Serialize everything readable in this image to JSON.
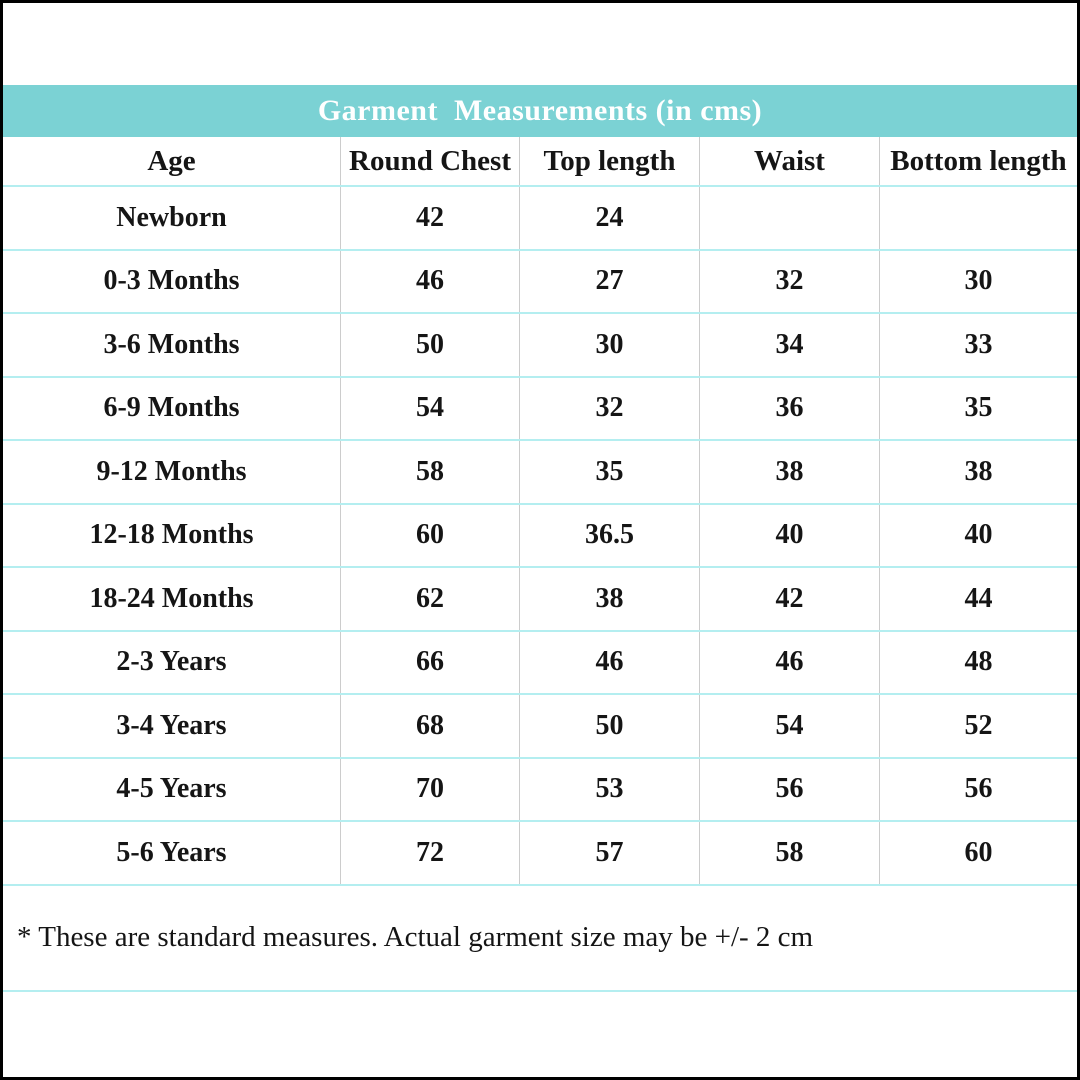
{
  "title": "Garment  Measurements (in cms)",
  "columns": [
    "Age",
    "Round Chest",
    "Top length",
    "Waist",
    "Bottom length"
  ],
  "rows": [
    {
      "label": "Newborn",
      "values": [
        "42",
        "24",
        "",
        ""
      ]
    },
    {
      "label": "0-3 Months",
      "values": [
        "46",
        "27",
        "32",
        "30"
      ]
    },
    {
      "label": "3-6 Months",
      "values": [
        "50",
        "30",
        "34",
        "33"
      ]
    },
    {
      "label": "6-9 Months",
      "values": [
        "54",
        "32",
        "36",
        "35"
      ]
    },
    {
      "label": "9-12 Months",
      "values": [
        "58",
        "35",
        "38",
        "38"
      ]
    },
    {
      "label": "12-18 Months",
      "values": [
        "60",
        "36.5",
        "40",
        "40"
      ]
    },
    {
      "label": "18-24 Months",
      "values": [
        "62",
        "38",
        "42",
        "44"
      ]
    },
    {
      "label": "2-3 Years",
      "values": [
        "66",
        "46",
        "46",
        "48"
      ]
    },
    {
      "label": "3-4 Years",
      "values": [
        "68",
        "50",
        "54",
        "52"
      ]
    },
    {
      "label": "4-5 Years",
      "values": [
        "70",
        "53",
        "56",
        "56"
      ]
    },
    {
      "label": "5-6 Years",
      "values": [
        "72",
        "57",
        "58",
        "60"
      ]
    }
  ],
  "footnote": "* These are standard measures. Actual garment size may be +/- 2 cm",
  "colors": {
    "title_band_bg": "#7bd2d4",
    "title_text": "#ffffff",
    "row_separator": "#b4eef0",
    "column_separator": "#cccccc",
    "outer_border": "#000000",
    "body_text": "#151515"
  },
  "chart_data": {
    "type": "table",
    "title": "Garment  Measurements (in cms)",
    "columns": [
      "Age",
      "Round Chest",
      "Top length",
      "Waist",
      "Bottom length"
    ],
    "units": "cm",
    "rows": [
      [
        "Newborn",
        42,
        24,
        null,
        null
      ],
      [
        "0-3 Months",
        46,
        27,
        32,
        30
      ],
      [
        "3-6 Months",
        50,
        30,
        34,
        33
      ],
      [
        "6-9 Months",
        54,
        32,
        36,
        35
      ],
      [
        "9-12 Months",
        58,
        35,
        38,
        38
      ],
      [
        "12-18 Months",
        60,
        36.5,
        40,
        40
      ],
      [
        "18-24 Months",
        62,
        38,
        42,
        44
      ],
      [
        "2-3 Years",
        66,
        46,
        46,
        48
      ],
      [
        "3-4 Years",
        68,
        50,
        54,
        52
      ],
      [
        "4-5 Years",
        70,
        53,
        56,
        56
      ],
      [
        "5-6 Years",
        72,
        57,
        58,
        60
      ]
    ],
    "footnote": "* These are standard measures. Actual garment size may be +/- 2 cm"
  }
}
